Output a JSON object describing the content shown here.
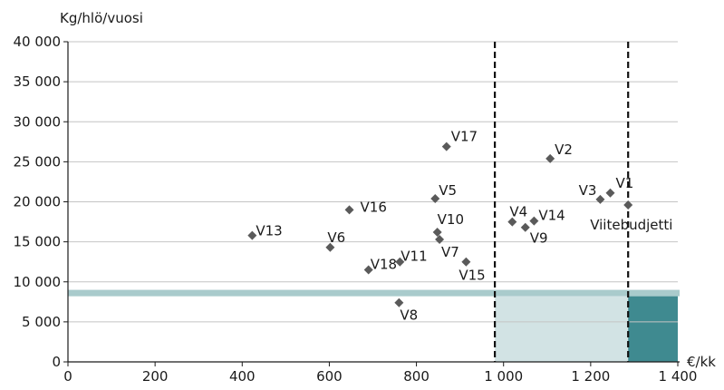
{
  "chart_data": {
    "type": "scatter",
    "ylabel": "Kg/hlö/vuosi",
    "xlabel": "€/kk",
    "xlim": [
      0,
      1400
    ],
    "ylim": [
      0,
      40000
    ],
    "x_ticks": [
      "0",
      "200",
      "400",
      "600",
      "800",
      "1 000",
      "1 200",
      "1 400"
    ],
    "y_ticks": [
      "0",
      "5 000",
      "10 000",
      "15 000",
      "20 000",
      "25 000",
      "30 000",
      "35 000",
      "40 000"
    ],
    "grid": "horizontal",
    "marker_color": "#5a5a5a",
    "points": [
      {
        "label": "V1",
        "x": 1245,
        "y": 21100
      },
      {
        "label": "V2",
        "x": 1107,
        "y": 25400
      },
      {
        "label": "V3",
        "x": 1222,
        "y": 20300
      },
      {
        "label": "V4",
        "x": 1020,
        "y": 17500
      },
      {
        "label": "V5",
        "x": 843,
        "y": 20400
      },
      {
        "label": "V6",
        "x": 602,
        "y": 14300
      },
      {
        "label": "V7",
        "x": 853,
        "y": 15300
      },
      {
        "label": "V8",
        "x": 760,
        "y": 7400
      },
      {
        "label": "V9",
        "x": 1050,
        "y": 16800
      },
      {
        "label": "V10",
        "x": 848,
        "y": 16200
      },
      {
        "label": "V11",
        "x": 762,
        "y": 12500
      },
      {
        "label": "V13",
        "x": 423,
        "y": 15800
      },
      {
        "label": "V14",
        "x": 1070,
        "y": 17600
      },
      {
        "label": "V15",
        "x": 914,
        "y": 12500
      },
      {
        "label": "V16",
        "x": 646,
        "y": 19000
      },
      {
        "label": "V17",
        "x": 869,
        "y": 26900
      },
      {
        "label": "V18",
        "x": 690,
        "y": 11500
      },
      {
        "label": "Viitebudjetti",
        "x": 1286,
        "y": 19600
      }
    ],
    "reference_lines_x": [
      980,
      1286
    ],
    "bands": [
      {
        "kind": "horizontal-band",
        "y_from": 8200,
        "y_to": 9000,
        "color": "#a9cbcc"
      },
      {
        "kind": "region",
        "x_from": 980,
        "x_to": 1286,
        "y_from": 0,
        "y_to": 8200,
        "color": "#d2e3e4"
      },
      {
        "kind": "region",
        "x_from": 1286,
        "x_to": 1400,
        "y_from": 0,
        "y_to": 8200,
        "color": "#3f8a90"
      }
    ]
  }
}
